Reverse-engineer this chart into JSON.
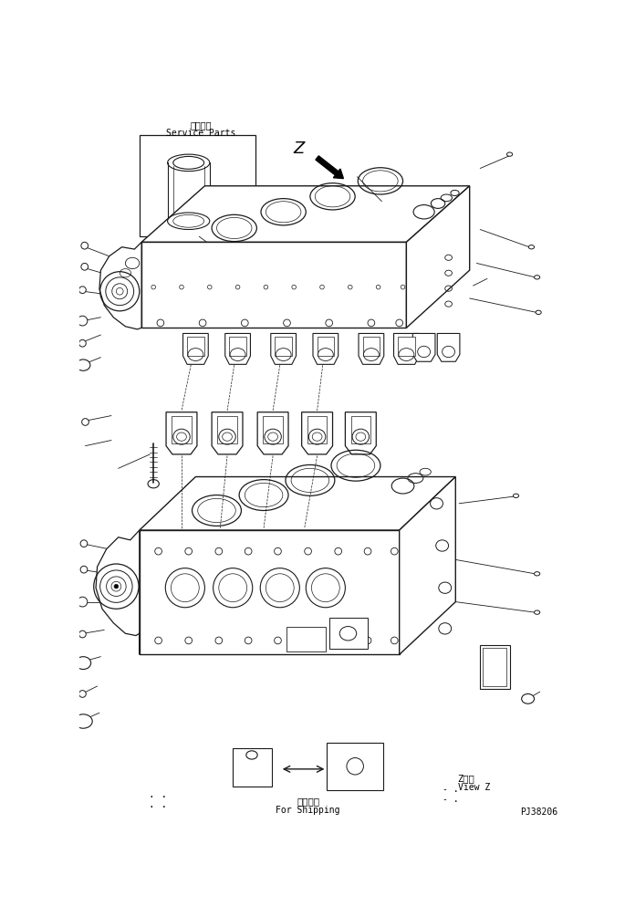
{
  "bg_color": "#ffffff",
  "lc": "#1a1a1a",
  "service_parts_jp": "補給専用",
  "service_parts_en": "Service Parts",
  "view_jp": "Z　視",
  "view_en": "View Z",
  "shipping_jp": "運搬部品",
  "shipping_en": "For Shipping",
  "part_no": "PJ38206",
  "z_label": "Z"
}
